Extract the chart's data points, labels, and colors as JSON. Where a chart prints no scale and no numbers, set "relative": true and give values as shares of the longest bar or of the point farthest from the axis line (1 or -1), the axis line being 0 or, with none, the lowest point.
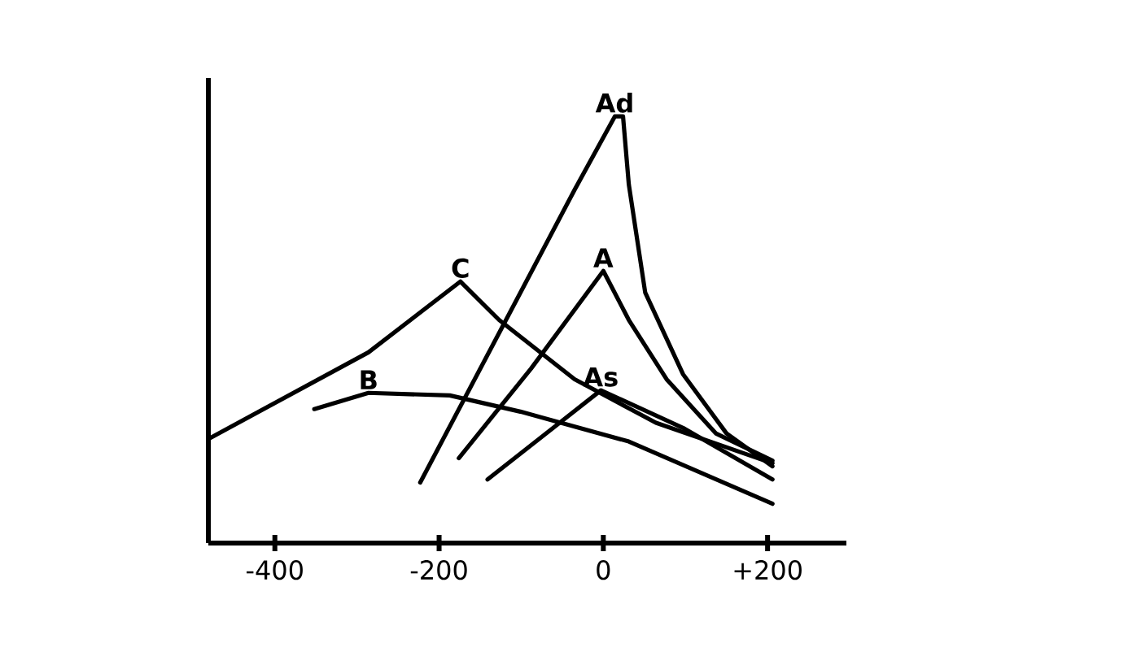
{
  "chart_data": {
    "type": "line",
    "relative": true,
    "tick_labels": "x",
    "xlim": [
      -481,
      296
    ],
    "xticks": [
      -400,
      -200,
      0,
      {
        "value": 200,
        "label": "+200"
      }
    ],
    "series": [
      {
        "name": "C",
        "color": "#000000",
        "x": [
          -481,
          -286,
          -174,
          -127,
          -35,
          64,
          206
        ],
        "values": [
          0.244,
          0.447,
          0.613,
          0.523,
          0.384,
          0.282,
          0.187
        ]
      },
      {
        "name": "B",
        "color": "#000000",
        "x": [
          -352,
          -286,
          -187,
          -101,
          31,
          206
        ],
        "values": [
          0.314,
          0.352,
          0.346,
          0.308,
          0.238,
          0.092
        ]
      },
      {
        "name": "Ad",
        "color": "#000000",
        "x": [
          -223,
          -101,
          -35,
          14,
          24,
          31,
          51,
          97,
          150,
          206
        ],
        "values": [
          0.142,
          0.587,
          0.828,
          1,
          1,
          0.841,
          0.587,
          0.396,
          0.257,
          0.18
        ]
      },
      {
        "name": "A",
        "color": "#000000",
        "x": [
          -176,
          -88,
          0,
          31,
          77,
          137,
          206
        ],
        "values": [
          0.199,
          0.409,
          0.638,
          0.523,
          0.384,
          0.257,
          0.193
        ]
      },
      {
        "name": "As",
        "color": "#000000",
        "x": [
          -141,
          -61,
          -3,
          97,
          206
        ],
        "values": [
          0.149,
          0.27,
          0.358,
          0.27,
          0.149
        ]
      }
    ]
  }
}
